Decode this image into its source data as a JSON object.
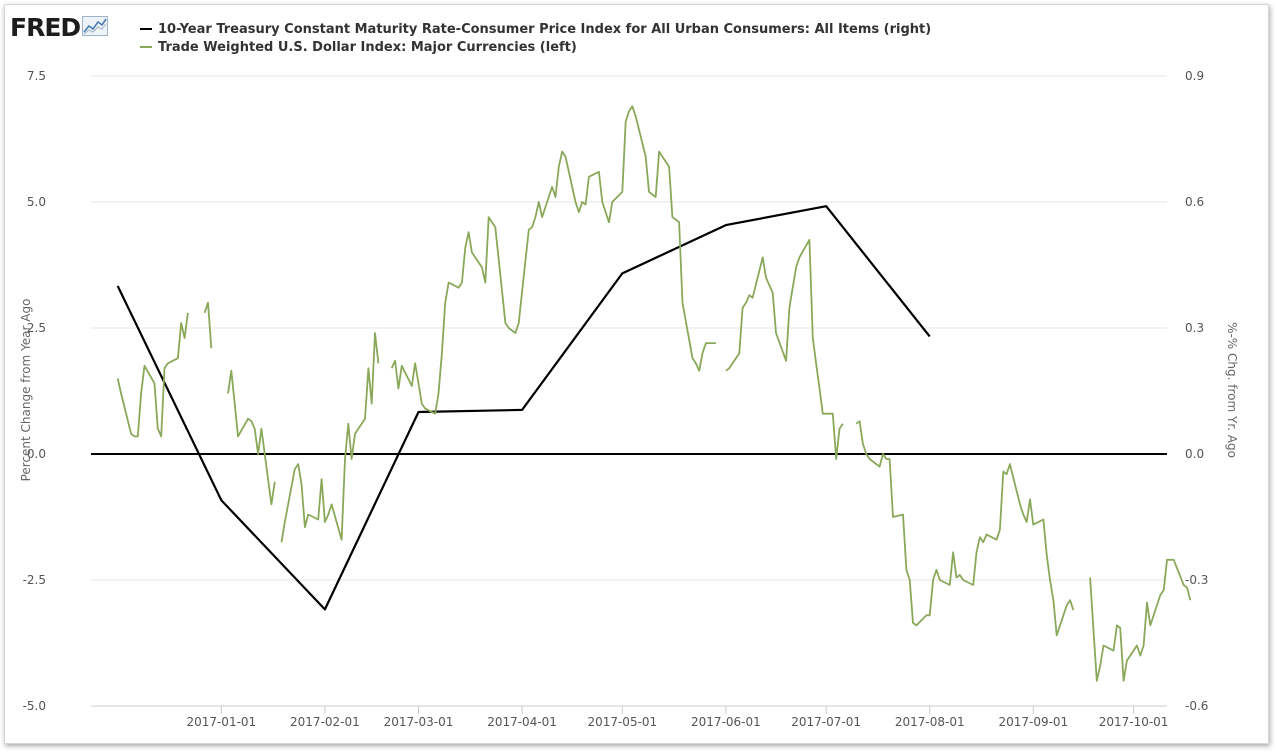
{
  "brand": {
    "name": "FRED"
  },
  "chart_data": {
    "type": "line",
    "x_axis": {
      "type": "date",
      "range": [
        "2016-11-23",
        "2017-10-11"
      ],
      "tick_labels": [
        "2017-01-01",
        "2017-02-01",
        "2017-03-01",
        "2017-04-01",
        "2017-05-01",
        "2017-06-01",
        "2017-07-01",
        "2017-08-01",
        "2017-09-01",
        "2017-10-01"
      ]
    },
    "y_left": {
      "label": "Percent Change from Year Ago",
      "range": [
        -5.0,
        7.5
      ],
      "ticks": [
        "-5.0",
        "-2.5",
        "0.0",
        "2.5",
        "5.0",
        "7.5"
      ]
    },
    "y_right": {
      "label": "%-% Chg. from Yr. Ago",
      "range": [
        -0.6,
        0.9
      ],
      "ticks": [
        "-0.6",
        "-0.3",
        "0.0",
        "0.3",
        "0.6",
        "0.9"
      ]
    },
    "grid": "horizontal",
    "legend_position": "top-left",
    "zero_line": "black",
    "series": [
      {
        "name": "10-Year Treasury Constant Maturity Rate-Consumer Price Index for All Urban Consumers: All Items (right)",
        "axis": "right",
        "color": "#000000",
        "points": [
          [
            "2016-12-01",
            0.4
          ],
          [
            "2017-01-01",
            -0.11
          ],
          [
            "2017-02-01",
            -0.37
          ],
          [
            "2017-03-01",
            0.1
          ],
          [
            "2017-04-01",
            0.105
          ],
          [
            "2017-05-01",
            0.43
          ],
          [
            "2017-06-01",
            0.545
          ],
          [
            "2017-07-01",
            0.59
          ],
          [
            "2017-08-01",
            0.28
          ]
        ]
      },
      {
        "name": "Trade Weighted U.S. Dollar Index: Major Currencies (left)",
        "axis": "left",
        "color": "#8aa85a",
        "segments": [
          [
            [
              "2016-12-01",
              1.5
            ],
            [
              "2016-12-02",
              1.2
            ],
            [
              "2016-12-05",
              0.4
            ],
            [
              "2016-12-06",
              0.35
            ],
            [
              "2016-12-07",
              0.35
            ],
            [
              "2016-12-08",
              1.2
            ],
            [
              "2016-12-09",
              1.75
            ],
            [
              "2016-12-12",
              1.4
            ],
            [
              "2016-12-13",
              0.5
            ],
            [
              "2016-12-14",
              0.35
            ],
            [
              "2016-12-15",
              1.7
            ],
            [
              "2016-12-16",
              1.8
            ],
            [
              "2016-12-19",
              1.9
            ],
            [
              "2016-12-20",
              2.6
            ],
            [
              "2016-12-21",
              2.3
            ],
            [
              "2016-12-22",
              2.8
            ]
          ],
          [
            [
              "2016-12-27",
              2.8
            ],
            [
              "2016-12-28",
              3.0
            ],
            [
              "2016-12-29",
              2.1
            ]
          ],
          [
            [
              "2017-01-03",
              1.2
            ],
            [
              "2017-01-04",
              1.65
            ],
            [
              "2017-01-05",
              1.0
            ],
            [
              "2017-01-06",
              0.35
            ],
            [
              "2017-01-09",
              0.7
            ],
            [
              "2017-01-10",
              0.65
            ],
            [
              "2017-01-11",
              0.5
            ],
            [
              "2017-01-12",
              0.0
            ],
            [
              "2017-01-13",
              0.5
            ],
            [
              "2017-01-16",
              -1.0
            ],
            [
              "2017-01-17",
              -0.55
            ]
          ],
          [
            [
              "2017-01-19",
              -1.75
            ],
            [
              "2017-01-20",
              -1.35
            ],
            [
              "2017-01-23",
              -0.3
            ],
            [
              "2017-01-24",
              -0.2
            ],
            [
              "2017-01-25",
              -0.6
            ],
            [
              "2017-01-26",
              -1.45
            ],
            [
              "2017-01-27",
              -1.2
            ],
            [
              "2017-01-30",
              -1.3
            ],
            [
              "2017-01-31",
              -0.5
            ],
            [
              "2017-02-01",
              -1.35
            ],
            [
              "2017-02-02",
              -1.2
            ],
            [
              "2017-02-03",
              -1.0
            ],
            [
              "2017-02-06",
              -1.7
            ],
            [
              "2017-02-07",
              -0.1
            ],
            [
              "2017-02-08",
              0.6
            ],
            [
              "2017-02-09",
              -0.1
            ],
            [
              "2017-02-10",
              0.4
            ],
            [
              "2017-02-13",
              0.7
            ],
            [
              "2017-02-14",
              1.7
            ],
            [
              "2017-02-15",
              1.0
            ],
            [
              "2017-02-16",
              2.4
            ],
            [
              "2017-02-17",
              1.8
            ]
          ],
          [
            [
              "2017-02-21",
              1.7
            ],
            [
              "2017-02-22",
              1.85
            ],
            [
              "2017-02-23",
              1.3
            ],
            [
              "2017-02-24",
              1.75
            ],
            [
              "2017-02-27",
              1.35
            ],
            [
              "2017-02-28",
              1.8
            ],
            [
              "2017-03-01",
              1.4
            ],
            [
              "2017-03-02",
              1.0
            ],
            [
              "2017-03-03",
              0.9
            ],
            [
              "2017-03-06",
              0.8
            ],
            [
              "2017-03-07",
              1.2
            ],
            [
              "2017-03-08",
              2.0
            ],
            [
              "2017-03-09",
              3.0
            ],
            [
              "2017-03-10",
              3.4
            ],
            [
              "2017-03-13",
              3.3
            ],
            [
              "2017-03-14",
              3.4
            ],
            [
              "2017-03-15",
              4.1
            ],
            [
              "2017-03-16",
              4.4
            ],
            [
              "2017-03-17",
              4.0
            ],
            [
              "2017-03-20",
              3.7
            ],
            [
              "2017-03-21",
              3.4
            ],
            [
              "2017-03-22",
              4.7
            ],
            [
              "2017-03-23",
              4.6
            ],
            [
              "2017-03-24",
              4.5
            ],
            [
              "2017-03-27",
              2.6
            ],
            [
              "2017-03-28",
              2.5
            ],
            [
              "2017-03-29",
              2.45
            ],
            [
              "2017-03-30",
              2.4
            ],
            [
              "2017-03-31",
              2.6
            ],
            [
              "2017-04-03",
              4.45
            ],
            [
              "2017-04-04",
              4.5
            ],
            [
              "2017-04-05",
              4.7
            ],
            [
              "2017-04-06",
              5.0
            ],
            [
              "2017-04-07",
              4.7
            ],
            [
              "2017-04-10",
              5.3
            ],
            [
              "2017-04-11",
              5.1
            ],
            [
              "2017-04-12",
              5.7
            ],
            [
              "2017-04-13",
              6.0
            ],
            [
              "2017-04-14",
              5.9
            ],
            [
              "2017-04-17",
              5.0
            ],
            [
              "2017-04-18",
              4.8
            ],
            [
              "2017-04-19",
              5.0
            ],
            [
              "2017-04-20",
              4.95
            ],
            [
              "2017-04-21",
              5.5
            ],
            [
              "2017-04-24",
              5.6
            ],
            [
              "2017-04-25",
              5.0
            ],
            [
              "2017-04-26",
              4.8
            ],
            [
              "2017-04-27",
              4.6
            ],
            [
              "2017-04-28",
              5.0
            ],
            [
              "2017-05-01",
              5.2
            ],
            [
              "2017-05-02",
              6.6
            ],
            [
              "2017-05-03",
              6.8
            ],
            [
              "2017-05-04",
              6.9
            ],
            [
              "2017-05-05",
              6.7
            ],
            [
              "2017-05-08",
              5.9
            ],
            [
              "2017-05-09",
              5.2
            ],
            [
              "2017-05-10",
              5.15
            ],
            [
              "2017-05-11",
              5.1
            ],
            [
              "2017-05-12",
              6.0
            ],
            [
              "2017-05-15",
              5.7
            ],
            [
              "2017-05-16",
              4.7
            ],
            [
              "2017-05-17",
              4.65
            ],
            [
              "2017-05-18",
              4.6
            ],
            [
              "2017-05-19",
              3.0
            ],
            [
              "2017-05-22",
              1.9
            ],
            [
              "2017-05-23",
              1.8
            ],
            [
              "2017-05-24",
              1.65
            ],
            [
              "2017-05-25",
              2.0
            ],
            [
              "2017-05-26",
              2.2
            ],
            [
              "2017-05-29",
              2.2
            ]
          ],
          [
            [
              "2017-06-01",
              1.65
            ],
            [
              "2017-06-02",
              1.7
            ],
            [
              "2017-06-05",
              2.0
            ],
            [
              "2017-06-06",
              2.9
            ],
            [
              "2017-06-07",
              3.0
            ],
            [
              "2017-06-08",
              3.15
            ],
            [
              "2017-06-09",
              3.1
            ],
            [
              "2017-06-12",
              3.9
            ],
            [
              "2017-06-13",
              3.5
            ],
            [
              "2017-06-14",
              3.35
            ],
            [
              "2017-06-15",
              3.2
            ],
            [
              "2017-06-16",
              2.4
            ],
            [
              "2017-06-19",
              1.85
            ],
            [
              "2017-06-20",
              2.9
            ],
            [
              "2017-06-21",
              3.3
            ],
            [
              "2017-06-22",
              3.7
            ],
            [
              "2017-06-23",
              3.9
            ],
            [
              "2017-06-26",
              4.25
            ],
            [
              "2017-06-27",
              2.3
            ],
            [
              "2017-06-28",
              1.8
            ],
            [
              "2017-06-29",
              1.3
            ],
            [
              "2017-06-30",
              0.8
            ],
            [
              "2017-07-03",
              0.8
            ],
            [
              "2017-07-04",
              -0.1
            ],
            [
              "2017-07-05",
              0.5
            ],
            [
              "2017-07-06",
              0.6
            ]
          ],
          [
            [
              "2017-07-10",
              0.6
            ],
            [
              "2017-07-11",
              0.65
            ],
            [
              "2017-07-12",
              0.2
            ],
            [
              "2017-07-13",
              0.0
            ],
            [
              "2017-07-14",
              -0.1
            ],
            [
              "2017-07-17",
              -0.25
            ],
            [
              "2017-07-18",
              0.0
            ],
            [
              "2017-07-19",
              -0.1
            ],
            [
              "2017-07-20",
              -0.1
            ],
            [
              "2017-07-21",
              -1.25
            ],
            [
              "2017-07-24",
              -1.2
            ],
            [
              "2017-07-25",
              -2.3
            ],
            [
              "2017-07-26",
              -2.5
            ],
            [
              "2017-07-27",
              -3.35
            ],
            [
              "2017-07-28",
              -3.4
            ],
            [
              "2017-07-31",
              -3.2
            ],
            [
              "2017-08-01",
              -3.2
            ],
            [
              "2017-08-02",
              -2.5
            ],
            [
              "2017-08-03",
              -2.3
            ],
            [
              "2017-08-04",
              -2.5
            ],
            [
              "2017-08-07",
              -2.6
            ],
            [
              "2017-08-08",
              -1.95
            ],
            [
              "2017-08-09",
              -2.45
            ],
            [
              "2017-08-10",
              -2.4
            ],
            [
              "2017-08-11",
              -2.5
            ],
            [
              "2017-08-14",
              -2.6
            ],
            [
              "2017-08-15",
              -1.95
            ],
            [
              "2017-08-16",
              -1.65
            ],
            [
              "2017-08-17",
              -1.75
            ],
            [
              "2017-08-18",
              -1.6
            ],
            [
              "2017-08-21",
              -1.7
            ],
            [
              "2017-08-22",
              -1.5
            ],
            [
              "2017-08-23",
              -0.35
            ],
            [
              "2017-08-24",
              -0.4
            ],
            [
              "2017-08-25",
              -0.2
            ],
            [
              "2017-08-28",
              -1.0
            ],
            [
              "2017-08-29",
              -1.2
            ],
            [
              "2017-08-30",
              -1.35
            ],
            [
              "2017-08-31",
              -0.9
            ],
            [
              "2017-09-01",
              -1.4
            ],
            [
              "2017-09-04",
              -1.3
            ],
            [
              "2017-09-05",
              -2.0
            ],
            [
              "2017-09-06",
              -2.5
            ],
            [
              "2017-09-07",
              -2.9
            ],
            [
              "2017-09-08",
              -3.6
            ],
            [
              "2017-09-11",
              -3.0
            ],
            [
              "2017-09-12",
              -2.9
            ],
            [
              "2017-09-13",
              -3.1
            ]
          ],
          [
            [
              "2017-09-18",
              -2.45
            ],
            [
              "2017-09-19",
              -3.5
            ],
            [
              "2017-09-20",
              -4.5
            ],
            [
              "2017-09-21",
              -4.2
            ],
            [
              "2017-09-22",
              -3.8
            ],
            [
              "2017-09-25",
              -3.9
            ],
            [
              "2017-09-26",
              -3.4
            ],
            [
              "2017-09-27",
              -3.45
            ],
            [
              "2017-09-28",
              -4.5
            ],
            [
              "2017-09-29",
              -4.1
            ],
            [
              "2017-10-02",
              -3.8
            ],
            [
              "2017-10-03",
              -4.0
            ],
            [
              "2017-10-04",
              -3.8
            ],
            [
              "2017-10-05",
              -2.95
            ],
            [
              "2017-10-06",
              -3.4
            ],
            [
              "2017-10-09",
              -2.8
            ],
            [
              "2017-10-10",
              -2.7
            ],
            [
              "2017-10-11",
              -2.1
            ],
            [
              "2017-10-12",
              -2.1
            ],
            [
              "2017-10-13",
              -2.1
            ],
            [
              "2017-10-16",
              -2.6
            ],
            [
              "2017-10-17",
              -2.65
            ],
            [
              "2017-10-18",
              -2.9
            ]
          ]
        ]
      }
    ]
  }
}
